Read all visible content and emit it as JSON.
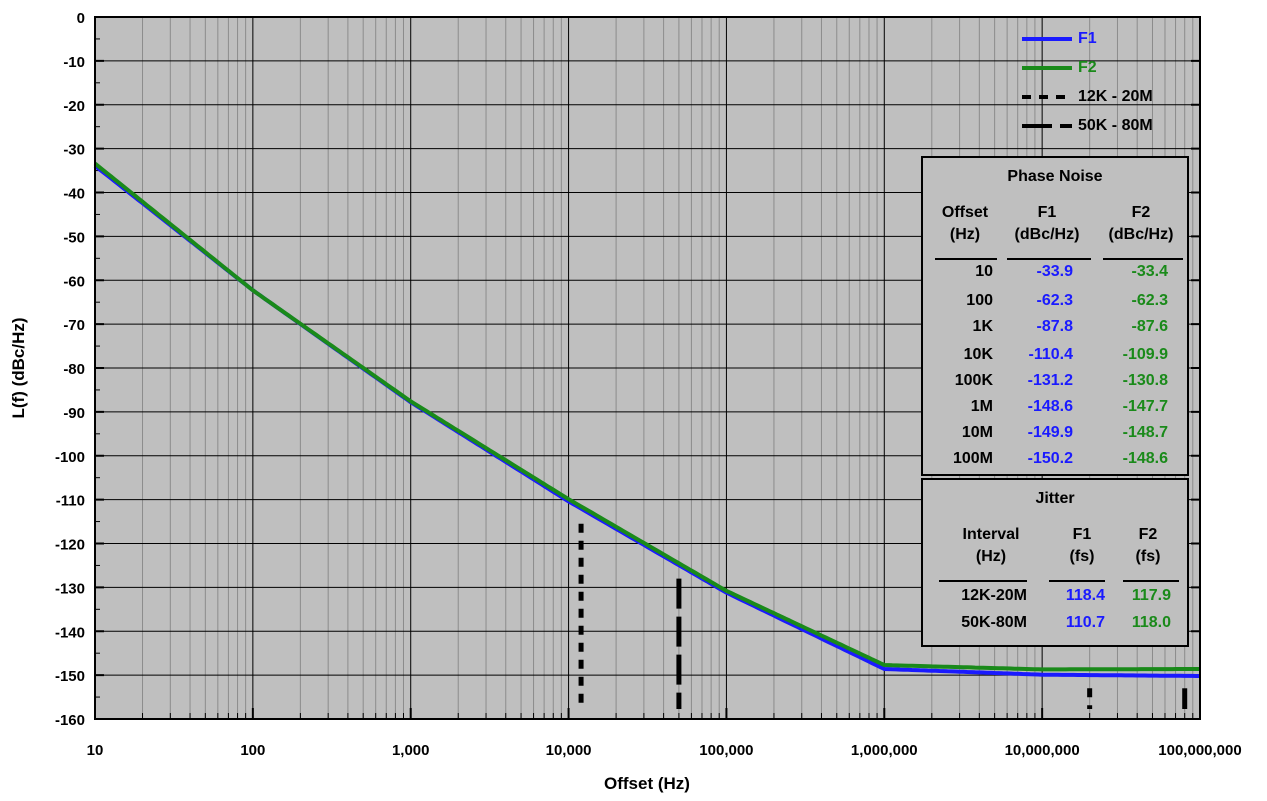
{
  "chart_data": {
    "type": "line",
    "x_scale": "log",
    "xlim": [
      10,
      100000000
    ],
    "ylim": [
      -160,
      0
    ],
    "xlabel": "Offset (Hz)",
    "ylabel": "L(f) (dBc/Hz)",
    "x_ticks": [
      "10",
      "100",
      "1,000",
      "10,000",
      "100,000",
      "1,000,000",
      "10,000,000",
      "100,000,000"
    ],
    "y_ticks": [
      "0",
      "-10",
      "-20",
      "-30",
      "-40",
      "-50",
      "-60",
      "-70",
      "-80",
      "-90",
      "-100",
      "-110",
      "-120",
      "-130",
      "-140",
      "-150",
      "-160"
    ],
    "grid": true,
    "legend_position": "top-right",
    "series": [
      {
        "name": "F1",
        "color": "#1a1aff",
        "x": [
          10,
          100,
          1000,
          10000,
          100000,
          1000000,
          10000000,
          100000000
        ],
        "y": [
          -33.9,
          -62.3,
          -87.8,
          -110.4,
          -131.2,
          -148.6,
          -149.9,
          -150.2
        ]
      },
      {
        "name": "F2",
        "color": "#1a8a1a",
        "x": [
          10,
          100,
          1000,
          10000,
          100000,
          1000000,
          10000000,
          100000000
        ],
        "y": [
          -33.4,
          -62.3,
          -87.6,
          -109.9,
          -130.8,
          -147.7,
          -148.7,
          -148.6
        ]
      }
    ],
    "markers": [
      {
        "name": "12K - 20M",
        "style": "dash",
        "x": [
          12000,
          20000000
        ]
      },
      {
        "name": "50K - 80M",
        "style": "longdash",
        "x": [
          50000,
          80000000
        ]
      }
    ]
  },
  "legend": {
    "items": [
      {
        "label": "F1",
        "color": "#1a1aff",
        "style": "solid"
      },
      {
        "label": "F2",
        "color": "#1a8a1a",
        "style": "solid"
      },
      {
        "label": "12K - 20M",
        "color": "#000000",
        "style": "dash"
      },
      {
        "label": "50K - 80M",
        "color": "#000000",
        "style": "longdash"
      }
    ]
  },
  "phase_noise_table": {
    "title": "Phase Noise",
    "headers": {
      "offset": "Offset",
      "offset_unit": "(Hz)",
      "f1": "F1",
      "f1_unit": "(dBc/Hz)",
      "f2": "F2",
      "f2_unit": "(dBc/Hz)"
    },
    "rows": [
      {
        "offset": "10",
        "f1": "-33.9",
        "f2": "-33.4"
      },
      {
        "offset": "100",
        "f1": "-62.3",
        "f2": "-62.3"
      },
      {
        "offset": "1K",
        "f1": "-87.8",
        "f2": "-87.6"
      },
      {
        "offset": "10K",
        "f1": "-110.4",
        "f2": "-109.9"
      },
      {
        "offset": "100K",
        "f1": "-131.2",
        "f2": "-130.8"
      },
      {
        "offset": "1M",
        "f1": "-148.6",
        "f2": "-147.7"
      },
      {
        "offset": "10M",
        "f1": "-149.9",
        "f2": "-148.7"
      },
      {
        "offset": "100M",
        "f1": "-150.2",
        "f2": "-148.6"
      }
    ]
  },
  "jitter_table": {
    "title": "Jitter",
    "headers": {
      "interval": "Interval",
      "interval_unit": "(Hz)",
      "f1": "F1",
      "f1_unit": "(fs)",
      "f2": "F2",
      "f2_unit": "(fs)"
    },
    "rows": [
      {
        "interval": "12K-20M",
        "f1": "118.4",
        "f2": "117.9"
      },
      {
        "interval": "50K-80M",
        "f1": "110.7",
        "f2": "118.0"
      }
    ]
  }
}
